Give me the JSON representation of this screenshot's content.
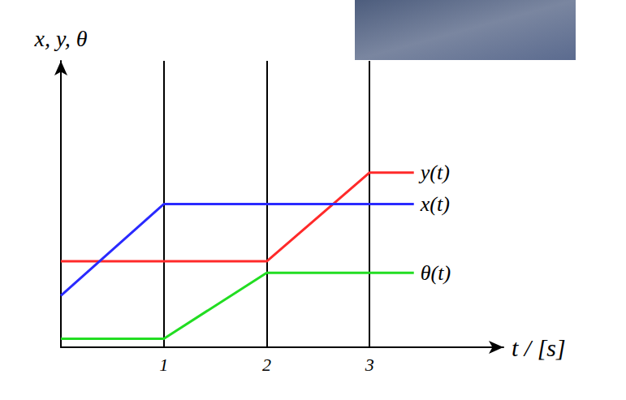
{
  "chart_data": {
    "type": "line",
    "xlabel": "t / [s]",
    "ylabel": "x, y, θ",
    "xlim": [
      0,
      4.3
    ],
    "xticks": [
      1,
      2,
      3
    ],
    "ylim": [
      0,
      10
    ],
    "yticks": [],
    "tick_labels": "x",
    "grid": true,
    "series": [
      {
        "name": "y(t)",
        "color": "#ff2a2a",
        "x": [
          0,
          2,
          3,
          3.43
        ],
        "values": [
          3.0,
          3.0,
          6.1,
          6.1
        ]
      },
      {
        "name": "x(t)",
        "color": "#2a2aff",
        "x": [
          0,
          1,
          3.43
        ],
        "values": [
          1.8,
          5.0,
          5.0
        ]
      },
      {
        "name": "θ(t)",
        "color": "#22dd22",
        "x": [
          0,
          1,
          2,
          3.43
        ],
        "values": [
          0.3,
          0.3,
          2.6,
          2.6
        ]
      }
    ]
  }
}
